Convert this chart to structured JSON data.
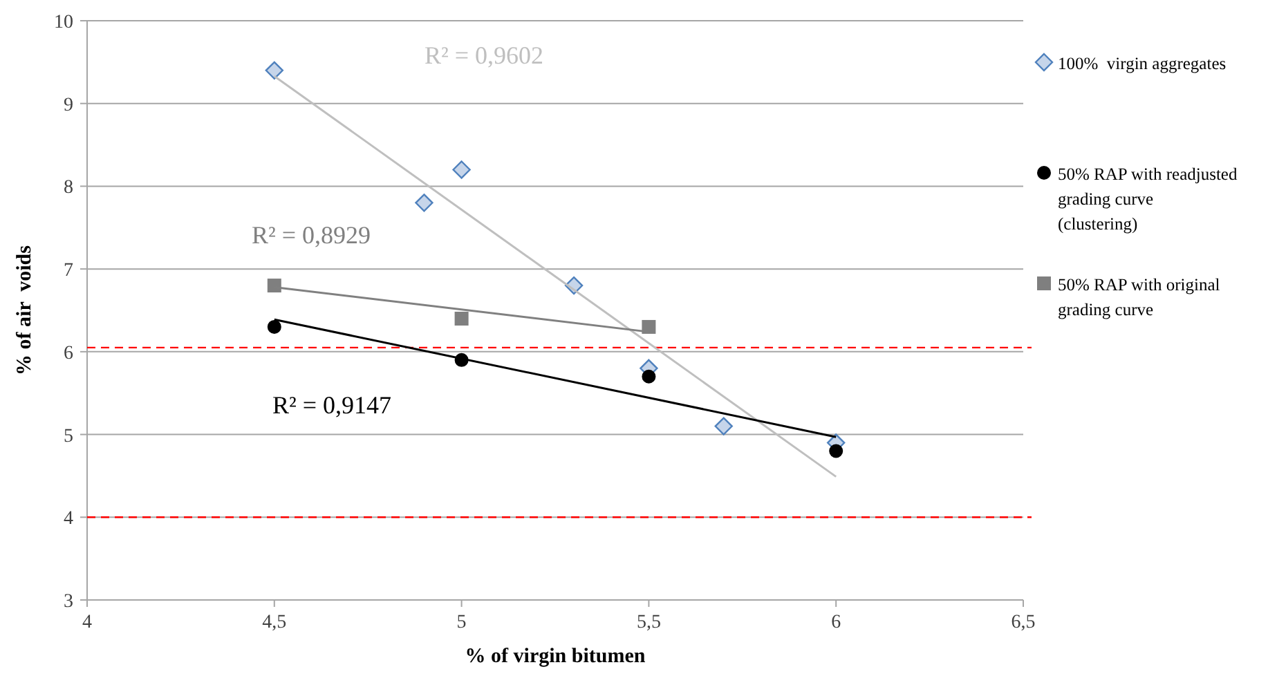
{
  "chart_data": {
    "type": "scatter",
    "xlabel": "% of virgin bitumen",
    "ylabel": "% of air  voids",
    "xlim": [
      4,
      6.5
    ],
    "xticks": [
      4,
      {
        "value": 4.5,
        "label": "4,5"
      },
      5,
      {
        "value": 5.5,
        "label": "5,5"
      },
      6,
      {
        "value": 6.5,
        "label": "6,5"
      }
    ],
    "ylim": [
      3,
      10
    ],
    "yticks": [
      3,
      4,
      5,
      6,
      7,
      8,
      9,
      10
    ],
    "grid": "y",
    "legend": "right",
    "series": [
      {
        "name": "100%  virgin aggregates",
        "marker": "diamond",
        "color": "#c6d5ea",
        "x": [
          4.5,
          4.9,
          5.0,
          5.3,
          5.5,
          5.7,
          6.0
        ],
        "values": [
          9.4,
          7.8,
          8.2,
          6.8,
          5.8,
          5.1,
          4.9
        ]
      },
      {
        "name": "50% RAP with readjusted grading curve (clustering)",
        "marker": "circle",
        "color": "#000000",
        "x": [
          4.5,
          5.0,
          5.5,
          6.0
        ],
        "values": [
          6.3,
          5.9,
          5.7,
          4.8
        ]
      },
      {
        "name": "50% RAP with original grading curve",
        "marker": "square",
        "color": "#7f7f7f",
        "x": [
          4.5,
          5.0,
          5.5
        ],
        "values": [
          6.8,
          6.4,
          6.3
        ]
      },
      {
        "type": "line",
        "marker": "none",
        "color": "#bfbfbf",
        "x": [
          4.5,
          6.0
        ],
        "values": [
          9.33,
          4.49
        ]
      },
      {
        "type": "line",
        "marker": "none",
        "color": "#808080",
        "x": [
          4.5,
          5.5
        ],
        "values": [
          6.78,
          6.24
        ]
      },
      {
        "type": "line",
        "marker": "none",
        "color": "#000000",
        "x": [
          4.5,
          6.0
        ],
        "values": [
          6.39,
          4.97
        ]
      }
    ],
    "ref_lines": [
      {
        "axis": "y",
        "value": 6.05,
        "color": "#ff0000",
        "line_style": "dashed"
      },
      {
        "axis": "y",
        "value": 4,
        "color": "#ff0000",
        "line_style": "dashed"
      }
    ],
    "annotations": [
      "R² = 0,9602",
      "R² = 0,8929",
      "R² = 0,9147"
    ]
  }
}
